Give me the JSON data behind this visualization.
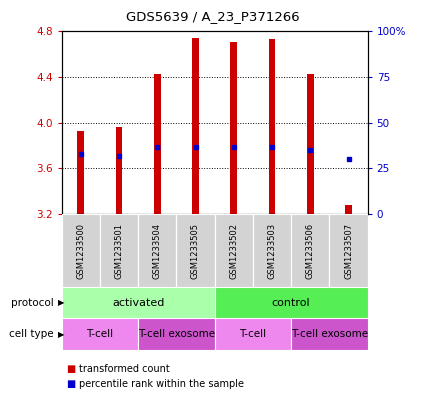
{
  "title": "GDS5639 / A_23_P371266",
  "samples": [
    "GSM1233500",
    "GSM1233501",
    "GSM1233504",
    "GSM1233505",
    "GSM1233502",
    "GSM1233503",
    "GSM1233506",
    "GSM1233507"
  ],
  "transformed_counts": [
    3.93,
    3.96,
    4.43,
    4.74,
    4.71,
    4.73,
    4.43,
    3.28
  ],
  "percentile_ranks": [
    33,
    32,
    37,
    37,
    37,
    37,
    35,
    30
  ],
  "bar_bottom": 3.2,
  "ylim_left": [
    3.2,
    4.8
  ],
  "ylim_right": [
    0,
    100
  ],
  "left_ticks": [
    3.2,
    3.6,
    4.0,
    4.4,
    4.8
  ],
  "right_ticks": [
    0,
    25,
    50,
    75,
    100
  ],
  "protocol_groups": [
    {
      "label": "activated",
      "start": 0,
      "end": 4,
      "color": "#aaffaa"
    },
    {
      "label": "control",
      "start": 4,
      "end": 8,
      "color": "#55ee55"
    }
  ],
  "cell_type_groups": [
    {
      "label": "T-cell",
      "start": 0,
      "end": 2,
      "color": "#ee88ee"
    },
    {
      "label": "T-cell exosome",
      "start": 2,
      "end": 4,
      "color": "#cc55cc"
    },
    {
      "label": "T-cell",
      "start": 4,
      "end": 6,
      "color": "#ee88ee"
    },
    {
      "label": "T-cell exosome",
      "start": 6,
      "end": 8,
      "color": "#cc55cc"
    }
  ],
  "bar_color": "#CC0000",
  "dot_color": "#0000CC",
  "sample_bg_color": "#D3D3D3",
  "left_label_color": "#CC0000",
  "right_label_color": "#0000CC",
  "legend_red": "transformed count",
  "legend_blue": "percentile rank within the sample"
}
